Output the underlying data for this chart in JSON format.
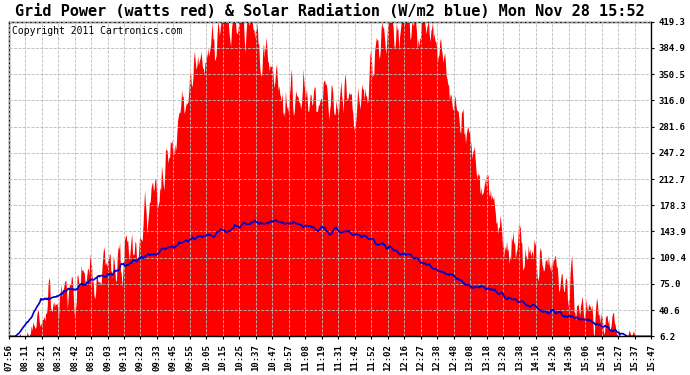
{
  "title": "Grid Power (watts red) & Solar Radiation (W/m2 blue) Mon Nov 28 15:52",
  "copyright_text": "Copyright 2011 Cartronics.com",
  "y_ticks": [
    6.2,
    40.6,
    75.0,
    109.4,
    143.9,
    178.3,
    212.7,
    247.2,
    281.6,
    316.0,
    350.5,
    384.9,
    419.3
  ],
  "ylim": [
    6.2,
    419.3
  ],
  "background_color": "#ffffff",
  "grid_color": "#aaaaaa",
  "red_color": "#ff0000",
  "blue_color": "#0000cc",
  "x_labels": [
    "07:56",
    "08:11",
    "08:21",
    "08:32",
    "08:42",
    "08:53",
    "09:03",
    "09:13",
    "09:23",
    "09:33",
    "09:45",
    "09:55",
    "10:05",
    "10:15",
    "10:25",
    "10:37",
    "10:47",
    "10:57",
    "11:08",
    "11:19",
    "11:31",
    "11:42",
    "11:52",
    "12:02",
    "12:16",
    "12:27",
    "12:38",
    "12:48",
    "13:08",
    "13:18",
    "13:28",
    "13:38",
    "14:16",
    "14:26",
    "14:36",
    "15:06",
    "15:16",
    "15:27",
    "15:37",
    "15:47"
  ],
  "title_fontsize": 11,
  "tick_fontsize": 6.5,
  "copyright_fontsize": 7
}
